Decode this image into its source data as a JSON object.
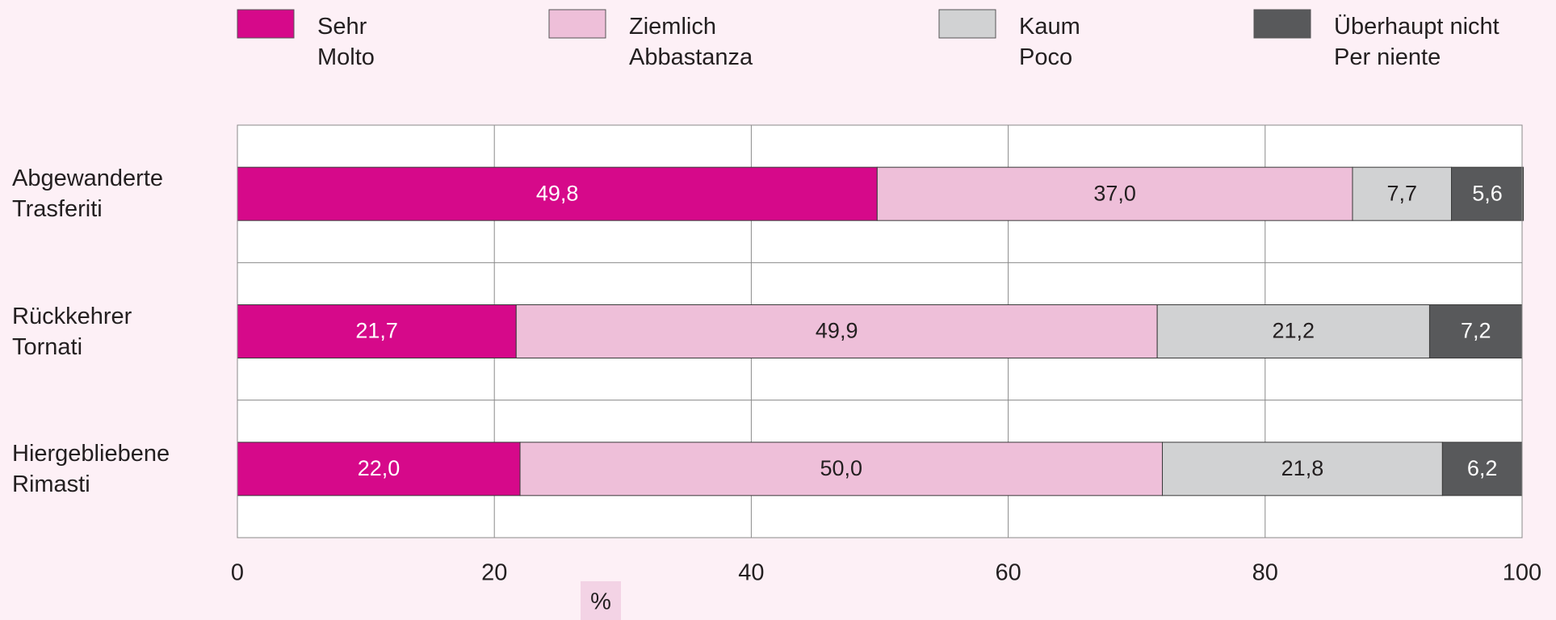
{
  "chart_data": {
    "type": "stacked-bar-horizontal",
    "categories": [
      "Abgewanderte\nTrasferiti",
      "Rückkehrer\nTornati",
      "Hiergebliebene\nRimasti"
    ],
    "series": [
      {
        "name": "Sehr\nMolto",
        "color": "#d6098a",
        "values": [
          49.8,
          21.7,
          22.0
        ],
        "value_labels": [
          "49,8",
          "21,7",
          "22,0"
        ]
      },
      {
        "name": "Ziemlich\nAbbastanza",
        "color": "#eebfd9",
        "values": [
          37.0,
          49.9,
          50.0
        ],
        "value_labels": [
          "37,0",
          "49,9",
          "50,0"
        ]
      },
      {
        "name": "Kaum\nPoco",
        "color": "#d1d2d3",
        "values": [
          7.7,
          21.2,
          21.8
        ],
        "value_labels": [
          "7,7",
          "21,2",
          "21,8"
        ]
      },
      {
        "name": "Überhaupt nicht\nPer niente",
        "color": "#58595b",
        "values": [
          5.6,
          7.2,
          6.2
        ],
        "value_labels": [
          "5,6",
          "7,2",
          "6,2"
        ]
      }
    ],
    "xlabel": "%",
    "xlim": [
      0,
      100
    ],
    "xticks": [
      0,
      20,
      40,
      60,
      80,
      100
    ],
    "grid": true,
    "legend": "top"
  }
}
